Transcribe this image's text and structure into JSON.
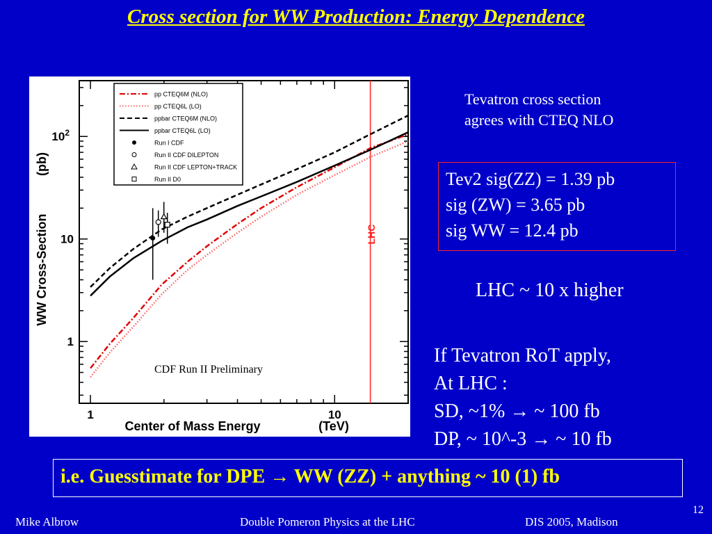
{
  "slide": {
    "title": "Cross section for WW Production: Energy Dependence",
    "note_tevatron_line1": "Tevatron cross section",
    "note_tevatron_line2": "agrees with CTEQ NLO",
    "box_line1": "Tev2 sig(ZZ) = 1.39 pb",
    "box_line2": "sig (ZW) = 3.65 pb",
    "box_line3": "sig WW = 12.4 pb",
    "lhc_note": "LHC ~ 10 x higher",
    "rot_line1": "If Tevatron RoT apply,",
    "rot_line2": "At LHC :",
    "rot_line3": "SD, ~1% → ~ 100 fb",
    "rot_line4": "DP, ~ 10^-3 → ~ 10 fb",
    "guesstimate": "i.e. Guesstimate for DPE → WW (ZZ) + anything ~ 10 (1) fb",
    "footer_left": "Mike Albrow",
    "footer_center": "Double Pomeron Physics  at the LHC",
    "footer_right": "DIS 2005, Madison",
    "page_number": "12",
    "colors": {
      "background": "#0000c8",
      "title": "#ffff00",
      "accent_red": "#ff2020"
    }
  },
  "chart_data": {
    "type": "line",
    "xlabel": "Center of Mass Energy",
    "xunit": "(TeV)",
    "ylabel": "WW Cross-Section",
    "yunit": "(pb)",
    "xscale": "log",
    "yscale": "log",
    "xlim": [
      0.9,
      20
    ],
    "ylim": [
      0.25,
      350
    ],
    "x_ticks": [
      {
        "v": 1,
        "label": "1"
      },
      {
        "v": 10,
        "label": "10"
      }
    ],
    "y_ticks": [
      {
        "v": 1,
        "label": "1"
      },
      {
        "v": 10,
        "label": "10"
      },
      {
        "v": 100,
        "label": "10^2"
      }
    ],
    "annotation": "CDF Run II Preliminary",
    "vline": {
      "x": 14,
      "label": "LHC",
      "color": "#ff2020"
    },
    "legend_position": "top-left",
    "series": [
      {
        "name": "pp CTEQ6M (NLO)",
        "style": "dash-dot",
        "color": "#e00000",
        "points": [
          [
            1,
            0.55
          ],
          [
            1.2,
            0.95
          ],
          [
            1.5,
            1.7
          ],
          [
            1.96,
            3.6
          ],
          [
            2.5,
            6
          ],
          [
            3,
            8.5
          ],
          [
            4,
            14
          ],
          [
            5,
            20
          ],
          [
            7,
            32
          ],
          [
            10,
            50
          ],
          [
            14,
            77
          ],
          [
            20,
            105
          ]
        ]
      },
      {
        "name": "pp CTEQ6L (LO)",
        "style": "dotted",
        "color": "#ff6060",
        "points": [
          [
            1,
            0.45
          ],
          [
            1.2,
            0.78
          ],
          [
            1.5,
            1.4
          ],
          [
            1.96,
            2.9
          ],
          [
            2.5,
            5
          ],
          [
            3,
            7
          ],
          [
            4,
            11.5
          ],
          [
            5,
            16.5
          ],
          [
            7,
            27
          ],
          [
            10,
            42
          ],
          [
            14,
            63
          ],
          [
            20,
            90
          ]
        ]
      },
      {
        "name": "ppbar CTEQ6M (NLO)",
        "style": "dashed",
        "color": "#000000",
        "points": [
          [
            1,
            3.4
          ],
          [
            1.2,
            5.2
          ],
          [
            1.5,
            8
          ],
          [
            1.96,
            12.4
          ],
          [
            2.5,
            16.5
          ],
          [
            3,
            20
          ],
          [
            4,
            27
          ],
          [
            5,
            34
          ],
          [
            7,
            48
          ],
          [
            10,
            70
          ],
          [
            14,
            105
          ],
          [
            20,
            160
          ]
        ]
      },
      {
        "name": "ppbar CTEQ6L (LO)",
        "style": "solid",
        "color": "#000000",
        "points": [
          [
            1,
            2.8
          ],
          [
            1.2,
            4.3
          ],
          [
            1.5,
            6.5
          ],
          [
            1.96,
            9.6
          ],
          [
            2.5,
            13
          ],
          [
            3,
            15.5
          ],
          [
            4,
            21
          ],
          [
            5,
            26
          ],
          [
            7,
            36
          ],
          [
            10,
            52
          ],
          [
            14,
            74
          ],
          [
            20,
            110
          ]
        ]
      }
    ],
    "measurements": [
      {
        "name": "Run I CDF",
        "marker": "filled-circle",
        "x": 1.8,
        "y": 10.2,
        "ylow": 4.0,
        "yhigh": 20
      },
      {
        "name": "Run II CDF DILEPTON",
        "marker": "open-circle",
        "x": 1.96,
        "y": 14.6,
        "ylow": 10.5,
        "yhigh": 19
      },
      {
        "name": "Run II CDF LEPTON+TRACK",
        "marker": "triangle",
        "x": 1.96,
        "y": 16.5,
        "ylow": 11.5,
        "yhigh": 23
      },
      {
        "name": "Run II D0",
        "marker": "open-square",
        "x": 1.96,
        "y": 13.8,
        "ylow": 9.0,
        "yhigh": 18
      }
    ]
  }
}
